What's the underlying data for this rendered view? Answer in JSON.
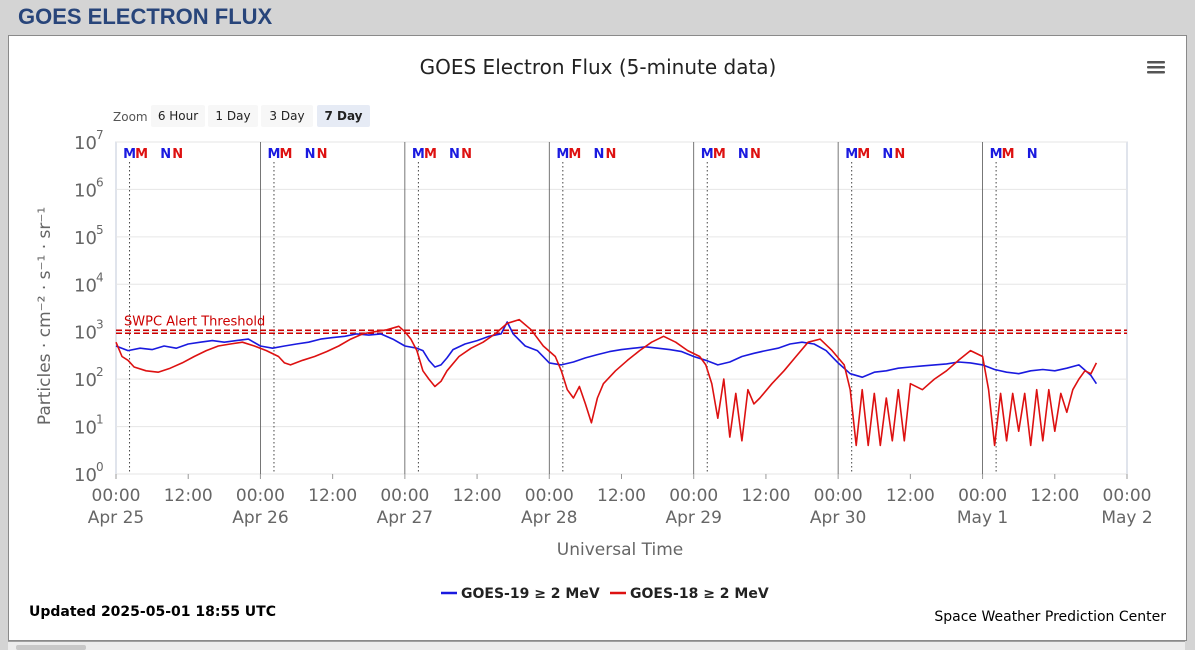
{
  "page_title": "GOES ELECTRON FLUX",
  "chart_data": {
    "type": "line",
    "title": "GOES Electron Flux (5-minute data)",
    "xlabel": "Universal Time",
    "ylabel": "Particles · cm⁻² · s⁻¹ · sr⁻¹",
    "yscale": "log",
    "ylim": [
      1,
      10000000
    ],
    "xlim": [
      "2025-04-25 00:00",
      "2025-05-02 00:00"
    ],
    "y_ticks": [
      {
        "base": "10",
        "exp": "0"
      },
      {
        "base": "10",
        "exp": "1"
      },
      {
        "base": "10",
        "exp": "2"
      },
      {
        "base": "10",
        "exp": "3"
      },
      {
        "base": "10",
        "exp": "4"
      },
      {
        "base": "10",
        "exp": "5"
      },
      {
        "base": "10",
        "exp": "6"
      },
      {
        "base": "10",
        "exp": "7"
      }
    ],
    "x_ticks": [
      {
        "time": "00:00",
        "date": "Apr 25"
      },
      {
        "time": "12:00",
        "date": ""
      },
      {
        "time": "00:00",
        "date": "Apr 26"
      },
      {
        "time": "12:00",
        "date": ""
      },
      {
        "time": "00:00",
        "date": "Apr 27"
      },
      {
        "time": "12:00",
        "date": ""
      },
      {
        "time": "00:00",
        "date": "Apr 28"
      },
      {
        "time": "12:00",
        "date": ""
      },
      {
        "time": "00:00",
        "date": "Apr 29"
      },
      {
        "time": "12:00",
        "date": ""
      },
      {
        "time": "00:00",
        "date": "Apr 30"
      },
      {
        "time": "12:00",
        "date": ""
      },
      {
        "time": "00:00",
        "date": "May 1"
      },
      {
        "time": "12:00",
        "date": ""
      },
      {
        "time": "00:00",
        "date": "May 2"
      }
    ],
    "threshold": {
      "label": "SWPC Alert Threshold",
      "value": 1000,
      "color": "#cc0000"
    },
    "markers": [
      {
        "label": "M",
        "t": "2025-04-25 02:15",
        "color": "#1a1adf"
      },
      {
        "label": "M",
        "t": "2025-04-25 04:15",
        "color": "#dd1111"
      },
      {
        "label": "N",
        "t": "2025-04-25 08:15",
        "color": "#1a1adf"
      },
      {
        "label": "N",
        "t": "2025-04-25 10:15",
        "color": "#dd1111"
      },
      {
        "label": "M",
        "t": "2025-04-26 02:15",
        "color": "#1a1adf"
      },
      {
        "label": "M",
        "t": "2025-04-26 04:15",
        "color": "#dd1111"
      },
      {
        "label": "N",
        "t": "2025-04-26 08:15",
        "color": "#1a1adf"
      },
      {
        "label": "N",
        "t": "2025-04-26 10:15",
        "color": "#dd1111"
      },
      {
        "label": "M",
        "t": "2025-04-27 02:15",
        "color": "#1a1adf"
      },
      {
        "label": "M",
        "t": "2025-04-27 04:15",
        "color": "#dd1111"
      },
      {
        "label": "N",
        "t": "2025-04-27 08:15",
        "color": "#1a1adf"
      },
      {
        "label": "N",
        "t": "2025-04-27 10:15",
        "color": "#dd1111"
      },
      {
        "label": "M",
        "t": "2025-04-28 02:15",
        "color": "#1a1adf"
      },
      {
        "label": "M",
        "t": "2025-04-28 04:15",
        "color": "#dd1111"
      },
      {
        "label": "N",
        "t": "2025-04-28 08:15",
        "color": "#1a1adf"
      },
      {
        "label": "N",
        "t": "2025-04-28 10:15",
        "color": "#dd1111"
      },
      {
        "label": "M",
        "t": "2025-04-29 02:15",
        "color": "#1a1adf"
      },
      {
        "label": "M",
        "t": "2025-04-29 04:15",
        "color": "#dd1111"
      },
      {
        "label": "N",
        "t": "2025-04-29 08:15",
        "color": "#1a1adf"
      },
      {
        "label": "N",
        "t": "2025-04-29 10:15",
        "color": "#dd1111"
      },
      {
        "label": "M",
        "t": "2025-04-30 02:15",
        "color": "#1a1adf"
      },
      {
        "label": "M",
        "t": "2025-04-30 04:15",
        "color": "#dd1111"
      },
      {
        "label": "N",
        "t": "2025-04-30 08:15",
        "color": "#1a1adf"
      },
      {
        "label": "N",
        "t": "2025-04-30 10:15",
        "color": "#dd1111"
      },
      {
        "label": "M",
        "t": "2025-05-01 02:15",
        "color": "#1a1adf"
      },
      {
        "label": "M",
        "t": "2025-05-01 04:15",
        "color": "#dd1111"
      },
      {
        "label": "N",
        "t": "2025-05-01 08:15",
        "color": "#1a1adf"
      }
    ],
    "series": [
      {
        "name": "GOES-19 ≥ 2 MeV",
        "color": "#1a1adf",
        "points": [
          [
            "2025-04-25 00:00",
            500
          ],
          [
            "2025-04-25 02:00",
            400
          ],
          [
            "2025-04-25 04:00",
            450
          ],
          [
            "2025-04-25 06:00",
            420
          ],
          [
            "2025-04-25 08:00",
            500
          ],
          [
            "2025-04-25 10:00",
            450
          ],
          [
            "2025-04-25 12:00",
            550
          ],
          [
            "2025-04-25 14:00",
            600
          ],
          [
            "2025-04-25 16:00",
            650
          ],
          [
            "2025-04-25 18:00",
            600
          ],
          [
            "2025-04-25 20:00",
            650
          ],
          [
            "2025-04-25 22:00",
            700
          ],
          [
            "2025-04-26 00:00",
            500
          ],
          [
            "2025-04-26 02:00",
            450
          ],
          [
            "2025-04-26 04:00",
            500
          ],
          [
            "2025-04-26 06:00",
            550
          ],
          [
            "2025-04-26 08:00",
            600
          ],
          [
            "2025-04-26 10:00",
            700
          ],
          [
            "2025-04-26 12:00",
            750
          ],
          [
            "2025-04-26 14:00",
            800
          ],
          [
            "2025-04-26 16:00",
            900
          ],
          [
            "2025-04-26 18:00",
            850
          ],
          [
            "2025-04-26 20:00",
            900
          ],
          [
            "2025-04-26 22:00",
            700
          ],
          [
            "2025-04-27 00:00",
            500
          ],
          [
            "2025-04-27 02:00",
            450
          ],
          [
            "2025-04-27 03:00",
            400
          ],
          [
            "2025-04-27 04:00",
            250
          ],
          [
            "2025-04-27 05:00",
            180
          ],
          [
            "2025-04-27 06:00",
            200
          ],
          [
            "2025-04-27 07:00",
            280
          ],
          [
            "2025-04-27 08:00",
            420
          ],
          [
            "2025-04-27 10:00",
            550
          ],
          [
            "2025-04-27 12:00",
            650
          ],
          [
            "2025-04-27 14:00",
            800
          ],
          [
            "2025-04-27 16:00",
            900
          ],
          [
            "2025-04-27 17:00",
            1600
          ],
          [
            "2025-04-27 18:00",
            900
          ],
          [
            "2025-04-27 20:00",
            500
          ],
          [
            "2025-04-27 22:00",
            400
          ],
          [
            "2025-04-28 00:00",
            220
          ],
          [
            "2025-04-28 02:00",
            200
          ],
          [
            "2025-04-28 04:00",
            230
          ],
          [
            "2025-04-28 06:00",
            280
          ],
          [
            "2025-04-28 08:00",
            330
          ],
          [
            "2025-04-28 10:00",
            380
          ],
          [
            "2025-04-28 12:00",
            420
          ],
          [
            "2025-04-28 14:00",
            450
          ],
          [
            "2025-04-28 16:00",
            480
          ],
          [
            "2025-04-28 18:00",
            450
          ],
          [
            "2025-04-28 20:00",
            420
          ],
          [
            "2025-04-28 22:00",
            380
          ],
          [
            "2025-04-29 00:00",
            300
          ],
          [
            "2025-04-29 02:00",
            250
          ],
          [
            "2025-04-29 04:00",
            200
          ],
          [
            "2025-04-29 06:00",
            230
          ],
          [
            "2025-04-29 08:00",
            300
          ],
          [
            "2025-04-29 10:00",
            350
          ],
          [
            "2025-04-29 12:00",
            400
          ],
          [
            "2025-04-29 14:00",
            450
          ],
          [
            "2025-04-29 16:00",
            550
          ],
          [
            "2025-04-29 18:00",
            600
          ],
          [
            "2025-04-29 20:00",
            550
          ],
          [
            "2025-04-29 22:00",
            400
          ],
          [
            "2025-04-30 00:00",
            220
          ],
          [
            "2025-04-30 02:00",
            130
          ],
          [
            "2025-04-30 04:00",
            110
          ],
          [
            "2025-04-30 06:00",
            140
          ],
          [
            "2025-04-30 08:00",
            150
          ],
          [
            "2025-04-30 10:00",
            170
          ],
          [
            "2025-04-30 12:00",
            180
          ],
          [
            "2025-04-30 14:00",
            190
          ],
          [
            "2025-04-30 16:00",
            200
          ],
          [
            "2025-04-30 18:00",
            210
          ],
          [
            "2025-04-30 20:00",
            230
          ],
          [
            "2025-04-30 22:00",
            220
          ],
          [
            "2025-05-01 00:00",
            200
          ],
          [
            "2025-05-01 02:00",
            160
          ],
          [
            "2025-05-01 04:00",
            140
          ],
          [
            "2025-05-01 06:00",
            130
          ],
          [
            "2025-05-01 08:00",
            150
          ],
          [
            "2025-05-01 10:00",
            160
          ],
          [
            "2025-05-01 12:00",
            150
          ],
          [
            "2025-05-01 14:00",
            170
          ],
          [
            "2025-05-01 16:00",
            200
          ],
          [
            "2025-05-01 18:00",
            120
          ],
          [
            "2025-05-01 18:55",
            80
          ]
        ]
      },
      {
        "name": "GOES-18 ≥ 2 MeV",
        "color": "#dd1111",
        "points": [
          [
            "2025-04-25 00:00",
            600
          ],
          [
            "2025-04-25 01:00",
            300
          ],
          [
            "2025-04-25 02:00",
            250
          ],
          [
            "2025-04-25 03:00",
            180
          ],
          [
            "2025-04-25 05:00",
            150
          ],
          [
            "2025-04-25 07:00",
            140
          ],
          [
            "2025-04-25 09:00",
            170
          ],
          [
            "2025-04-25 11:00",
            220
          ],
          [
            "2025-04-25 13:00",
            300
          ],
          [
            "2025-04-25 15:00",
            400
          ],
          [
            "2025-04-25 17:00",
            500
          ],
          [
            "2025-04-25 19:00",
            550
          ],
          [
            "2025-04-25 21:00",
            600
          ],
          [
            "2025-04-25 23:00",
            500
          ],
          [
            "2025-04-26 01:00",
            400
          ],
          [
            "2025-04-26 03:00",
            300
          ],
          [
            "2025-04-26 04:00",
            220
          ],
          [
            "2025-04-26 05:00",
            200
          ],
          [
            "2025-04-26 07:00",
            250
          ],
          [
            "2025-04-26 09:00",
            300
          ],
          [
            "2025-04-26 11:00",
            380
          ],
          [
            "2025-04-26 13:00",
            500
          ],
          [
            "2025-04-26 15:00",
            700
          ],
          [
            "2025-04-26 17:00",
            900
          ],
          [
            "2025-04-26 19:00",
            1000
          ],
          [
            "2025-04-26 21:00",
            1100
          ],
          [
            "2025-04-26 23:00",
            1300
          ],
          [
            "2025-04-27 00:00",
            1000
          ],
          [
            "2025-04-27 01:00",
            700
          ],
          [
            "2025-04-27 02:00",
            400
          ],
          [
            "2025-04-27 03:00",
            150
          ],
          [
            "2025-04-27 04:00",
            100
          ],
          [
            "2025-04-27 05:00",
            70
          ],
          [
            "2025-04-27 06:00",
            90
          ],
          [
            "2025-04-27 07:00",
            150
          ],
          [
            "2025-04-27 09:00",
            300
          ],
          [
            "2025-04-27 11:00",
            450
          ],
          [
            "2025-04-27 13:00",
            600
          ],
          [
            "2025-04-27 15:00",
            900
          ],
          [
            "2025-04-27 17:00",
            1500
          ],
          [
            "2025-04-27 19:00",
            1800
          ],
          [
            "2025-04-27 21:00",
            1100
          ],
          [
            "2025-04-27 23:00",
            500
          ],
          [
            "2025-04-28 01:00",
            300
          ],
          [
            "2025-04-28 02:00",
            150
          ],
          [
            "2025-04-28 03:00",
            60
          ],
          [
            "2025-04-28 04:00",
            40
          ],
          [
            "2025-04-28 05:00",
            70
          ],
          [
            "2025-04-28 06:00",
            30
          ],
          [
            "2025-04-28 07:00",
            12
          ],
          [
            "2025-04-28 08:00",
            40
          ],
          [
            "2025-04-28 09:00",
            80
          ],
          [
            "2025-04-28 11:00",
            150
          ],
          [
            "2025-04-28 13:00",
            250
          ],
          [
            "2025-04-28 15:00",
            400
          ],
          [
            "2025-04-28 17:00",
            600
          ],
          [
            "2025-04-28 19:00",
            800
          ],
          [
            "2025-04-28 21:00",
            600
          ],
          [
            "2025-04-28 23:00",
            400
          ],
          [
            "2025-04-29 01:00",
            300
          ],
          [
            "2025-04-29 02:00",
            200
          ],
          [
            "2025-04-29 03:00",
            80
          ],
          [
            "2025-04-29 04:00",
            15
          ],
          [
            "2025-04-29 05:00",
            100
          ],
          [
            "2025-04-29 06:00",
            6
          ],
          [
            "2025-04-29 07:00",
            50
          ],
          [
            "2025-04-29 08:00",
            5
          ],
          [
            "2025-04-29 09:00",
            60
          ],
          [
            "2025-04-29 10:00",
            30
          ],
          [
            "2025-04-29 11:00",
            40
          ],
          [
            "2025-04-29 13:00",
            80
          ],
          [
            "2025-04-29 15:00",
            150
          ],
          [
            "2025-04-29 17:00",
            300
          ],
          [
            "2025-04-29 19:00",
            600
          ],
          [
            "2025-04-29 21:00",
            700
          ],
          [
            "2025-04-29 23:00",
            400
          ],
          [
            "2025-04-30 01:00",
            200
          ],
          [
            "2025-04-30 02:00",
            60
          ],
          [
            "2025-04-30 03:00",
            4
          ],
          [
            "2025-04-30 04:00",
            60
          ],
          [
            "2025-04-30 05:00",
            4
          ],
          [
            "2025-04-30 06:00",
            50
          ],
          [
            "2025-04-30 07:00",
            4
          ],
          [
            "2025-04-30 08:00",
            40
          ],
          [
            "2025-04-30 09:00",
            5
          ],
          [
            "2025-04-30 10:00",
            60
          ],
          [
            "2025-04-30 11:00",
            5
          ],
          [
            "2025-04-30 12:00",
            80
          ],
          [
            "2025-04-30 14:00",
            60
          ],
          [
            "2025-04-30 16:00",
            100
          ],
          [
            "2025-04-30 18:00",
            150
          ],
          [
            "2025-04-30 20:00",
            250
          ],
          [
            "2025-04-30 22:00",
            400
          ],
          [
            "2025-05-01 00:00",
            300
          ],
          [
            "2025-05-01 01:00",
            60
          ],
          [
            "2025-05-01 02:00",
            4
          ],
          [
            "2025-05-01 03:00",
            50
          ],
          [
            "2025-05-01 04:00",
            5
          ],
          [
            "2025-05-01 05:00",
            50
          ],
          [
            "2025-05-01 06:00",
            8
          ],
          [
            "2025-05-01 07:00",
            50
          ],
          [
            "2025-05-01 08:00",
            4
          ],
          [
            "2025-05-01 09:00",
            60
          ],
          [
            "2025-05-01 10:00",
            5
          ],
          [
            "2025-05-01 11:00",
            60
          ],
          [
            "2025-05-01 12:00",
            8
          ],
          [
            "2025-05-01 13:00",
            50
          ],
          [
            "2025-05-01 14:00",
            20
          ],
          [
            "2025-05-01 15:00",
            60
          ],
          [
            "2025-05-01 16:00",
            100
          ],
          [
            "2025-05-01 17:00",
            150
          ],
          [
            "2025-05-01 18:00",
            130
          ],
          [
            "2025-05-01 18:55",
            220
          ]
        ]
      }
    ]
  },
  "zoom": {
    "label": "Zoom",
    "buttons": [
      "6 Hour",
      "1 Day",
      "3 Day",
      "7 Day"
    ],
    "selected": "7 Day"
  },
  "menu_icon": "hamburger-menu-icon",
  "footer": {
    "updated": "Updated 2025-05-01 18:55 UTC",
    "credit": "Space Weather Prediction Center"
  }
}
